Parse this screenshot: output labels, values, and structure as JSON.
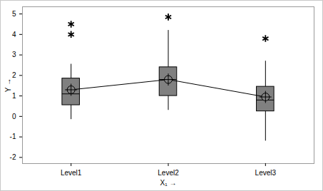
{
  "chart_data": {
    "type": "box",
    "x_label": "X₁",
    "y_label": "Y",
    "categories": [
      "Level1",
      "Level2",
      "Level3"
    ],
    "color": "#808080",
    "whisker_low": [
      -0.15,
      0.3,
      -1.2
    ],
    "q1": [
      0.55,
      1.0,
      0.25
    ],
    "median": [
      1.1,
      1.8,
      0.8
    ],
    "q3": [
      1.85,
      2.4,
      1.45
    ],
    "whisker_high": [
      2.55,
      4.2,
      2.7
    ],
    "means": [
      1.3,
      1.8,
      0.95
    ],
    "outliers": [
      [
        4.0,
        4.5
      ],
      [
        4.85
      ],
      [
        3.8
      ]
    ],
    "marker": "asterisk",
    "ylim": [
      -2.3,
      5.35
    ],
    "yticks": [
      -2,
      -1,
      0,
      1,
      2,
      3,
      4,
      5
    ],
    "grid": false
  }
}
